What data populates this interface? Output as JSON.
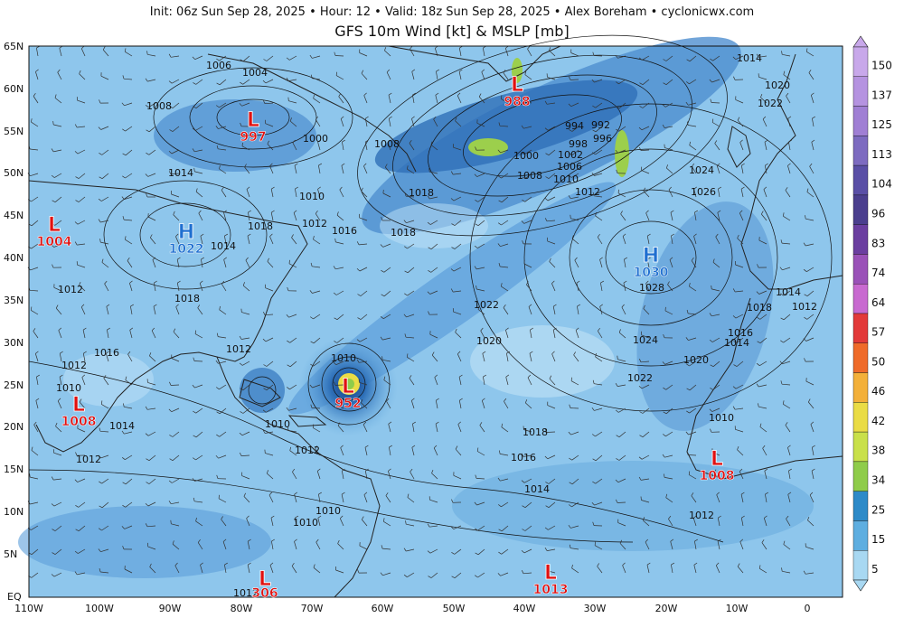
{
  "header": {
    "info_line": "Init: 06z Sun Sep 28, 2025  •  Hour: 12  •  Valid: 18z Sun Sep 28, 2025  •  Alex Boreham  •  cyclonicwx.com",
    "title": "GFS 10m Wind [kt] & MSLP [mb]"
  },
  "axes": {
    "lat_labels": [
      "65N",
      "60N",
      "55N",
      "50N",
      "45N",
      "40N",
      "35N",
      "30N",
      "25N",
      "20N",
      "15N",
      "10N",
      "5N",
      "EQ"
    ],
    "lon_labels": [
      "110W",
      "100W",
      "90W",
      "80W",
      "70W",
      "60W",
      "50W",
      "40W",
      "30W",
      "20W",
      "10W",
      "0"
    ]
  },
  "colorbar": {
    "ticks": [
      "150",
      "137",
      "125",
      "113",
      "104",
      "96",
      "83",
      "74",
      "64",
      "57",
      "50",
      "46",
      "42",
      "38",
      "34",
      "25",
      "15",
      "5"
    ],
    "colors": [
      "#c8a8ea",
      "#b593e0",
      "#a07fd4",
      "#7d6bc0",
      "#5a4fa6",
      "#4b3f8e",
      "#6b3fa0",
      "#9a52b8",
      "#c86ad0",
      "#e23a3a",
      "#ef6b2a",
      "#f3b03a",
      "#eadc45",
      "#c9e04a",
      "#8fcc4a",
      "#2d8ac8",
      "#5eaee0",
      "#a8d8f2"
    ]
  },
  "systems": [
    {
      "type": "L",
      "value": "997",
      "color": "#e01010"
    },
    {
      "type": "L",
      "value": "988",
      "color": "#e01010"
    },
    {
      "type": "H",
      "value": "1022",
      "color": "#1f6fd0"
    },
    {
      "type": "H",
      "value": "1030",
      "color": "#1f6fd0"
    },
    {
      "type": "L",
      "value": "1004",
      "color": "#e01010"
    },
    {
      "type": "L",
      "value": "952",
      "color": "#e01010"
    },
    {
      "type": "L",
      "value": "1008",
      "color": "#e01010"
    },
    {
      "type": "L",
      "value": "1008",
      "color": "#e01010"
    },
    {
      "type": "L",
      "value": "1013",
      "color": "#e01010"
    },
    {
      "type": "L",
      "value": "306",
      "color": "#e01010"
    }
  ],
  "isobar_labels": [
    "1006",
    "1004",
    "1008",
    "1000",
    "1008",
    "1014",
    "1010",
    "1018",
    "1018",
    "1012",
    "1016",
    "1018",
    "1014",
    "1020",
    "1012",
    "1018",
    "1016",
    "1012",
    "1012",
    "1010",
    "1014",
    "1010",
    "1012",
    "1010",
    "1012",
    "994",
    "992",
    "998",
    "996",
    "1000",
    "1002",
    "1006",
    "1008",
    "1010",
    "1012",
    "1014",
    "1020",
    "1022",
    "1024",
    "1026",
    "1022",
    "1020",
    "1028",
    "1024",
    "1022",
    "1020",
    "1014",
    "1012",
    "1018",
    "1016",
    "1014",
    "1010",
    "1018",
    "1016",
    "1014",
    "1012",
    "1010",
    "1010",
    "1012"
  ]
}
